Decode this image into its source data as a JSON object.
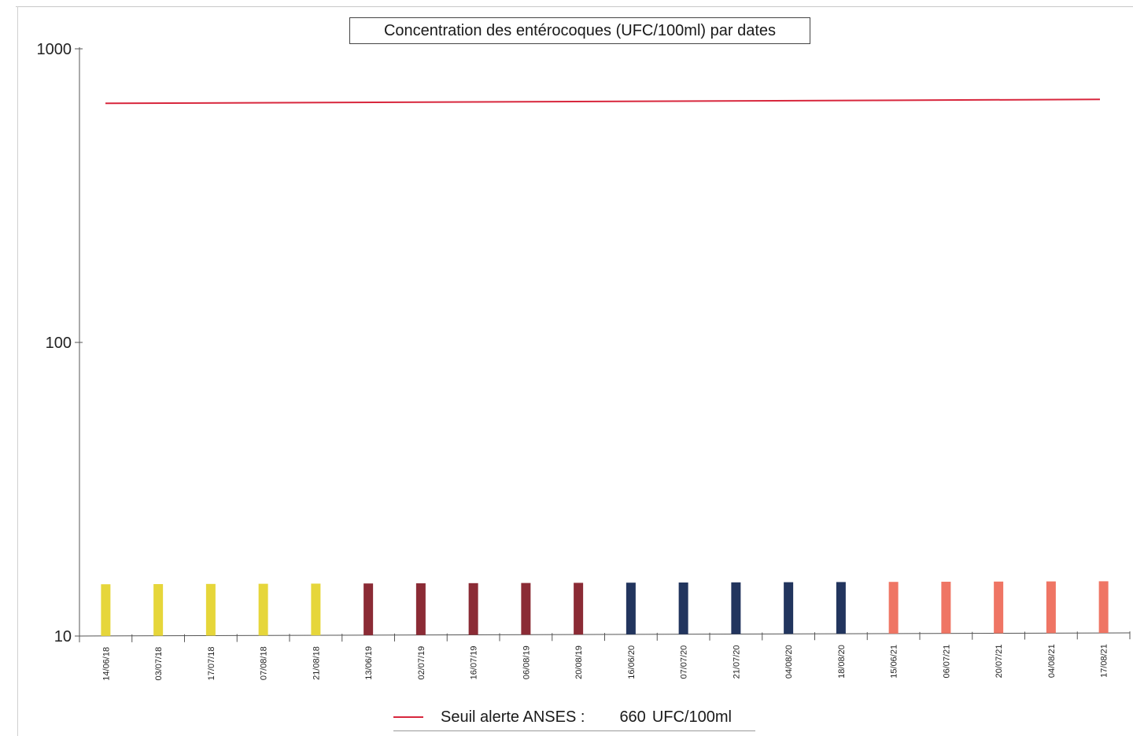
{
  "chart_data": {
    "type": "bar",
    "title": "Concentration des entérocoques (UFC/100ml) par dates",
    "yscale": "log",
    "ylim": [
      10,
      1000
    ],
    "y_ticks": [
      "1000",
      "100",
      "10"
    ],
    "categories": [
      "14/06/18",
      "03/07/18",
      "17/07/18",
      "07/08/18",
      "21/08/18",
      "13/06/19",
      "02/07/19",
      "16/07/19",
      "06/08/19",
      "20/08/19",
      "16/06/20",
      "07/07/20",
      "21/07/20",
      "04/08/20",
      "18/08/20",
      "15/06/21",
      "06/07/21",
      "20/07/21",
      "04/08/21",
      "17/08/21"
    ],
    "values": [
      15,
      15,
      15,
      15,
      15,
      15,
      15,
      15,
      15,
      15,
      15,
      15,
      15,
      15,
      15,
      15,
      15,
      15,
      15,
      15
    ],
    "bar_colors": [
      "#e6d63a",
      "#e6d63a",
      "#e6d63a",
      "#e6d63a",
      "#e6d63a",
      "#8b2b35",
      "#8b2b35",
      "#8b2b35",
      "#8b2b35",
      "#8b2b35",
      "#22355e",
      "#22355e",
      "#22355e",
      "#22355e",
      "#22355e",
      "#ef7564",
      "#ef7564",
      "#ef7564",
      "#ef7564",
      "#ef7564"
    ],
    "threshold": {
      "value": 660,
      "color": "#d8273d"
    },
    "legend": {
      "label": "Seuil alerte ANSES :",
      "value": "660",
      "unit": "UFC/100ml",
      "placement": "bottom"
    },
    "grid": false
  }
}
